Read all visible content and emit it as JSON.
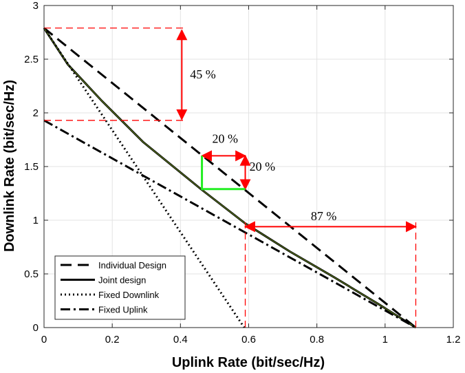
{
  "chart_data": {
    "type": "line",
    "title": "",
    "xlabel": "Uplink Rate (bit/sec/Hz)",
    "ylabel": "Downlink Rate (bit/sec/Hz)",
    "xlim": [
      0,
      1.2
    ],
    "ylim": [
      0,
      3
    ],
    "xticks": [
      0,
      0.2,
      0.4,
      0.6,
      0.8,
      1,
      1.2
    ],
    "xtick_labels": [
      "0",
      "0.2",
      "0.4",
      "0.6",
      "0.8",
      "1",
      "1.2"
    ],
    "yticks": [
      0,
      0.5,
      1,
      1.5,
      2,
      2.5,
      3
    ],
    "ytick_labels": [
      "0",
      "0.5",
      "1",
      "1.5",
      "2",
      "2.5",
      "3"
    ],
    "grid": true,
    "legend_position": "bottom-left",
    "series": [
      {
        "name": "Individual Design",
        "style": "dashed",
        "color": "#000000",
        "x": [
          0,
          1.09
        ],
        "y": [
          2.79,
          0
        ]
      },
      {
        "name": "Joint design",
        "style": "solid",
        "color": "#000000",
        "inner_color": "#6b8e23",
        "x": [
          0,
          0.07,
          0.17,
          0.29,
          0.46,
          0.59,
          0.72,
          0.85,
          0.98,
          1.09
        ],
        "y": [
          2.79,
          2.45,
          2.11,
          1.73,
          1.29,
          0.97,
          0.71,
          0.47,
          0.22,
          0
        ]
      },
      {
        "name": "Fixed Downlink",
        "style": "dotted",
        "color": "#000000",
        "x": [
          0,
          0.587
        ],
        "y": [
          2.79,
          0
        ]
      },
      {
        "name": "Fixed Uplink",
        "style": "dashdot",
        "color": "#000000",
        "x": [
          0,
          1.09
        ],
        "y": [
          1.93,
          0
        ]
      }
    ],
    "annotations": [
      {
        "text": "45 %",
        "x": 0.466,
        "y": 2.32
      },
      {
        "text": "20 %",
        "x": 0.531,
        "y": 1.72
      },
      {
        "text": "20 %",
        "x": 0.64,
        "y": 1.46
      },
      {
        "text": "87 %",
        "x": 0.82,
        "y": 1.0
      }
    ],
    "guides": [
      {
        "kind": "dashed-red",
        "x": [
          0,
          0.41
        ],
        "y": [
          2.79,
          2.79
        ]
      },
      {
        "kind": "dashed-red",
        "x": [
          0,
          0.41
        ],
        "y": [
          1.93,
          1.93
        ]
      },
      {
        "kind": "dashed-red",
        "x": [
          0.59,
          0.59
        ],
        "y": [
          0,
          0.98
        ]
      },
      {
        "kind": "dashed-red",
        "x": [
          1.09,
          1.09
        ],
        "y": [
          0,
          0.98
        ]
      },
      {
        "kind": "arrow-red-double",
        "x": [
          0.404,
          0.404
        ],
        "y": [
          2.77,
          1.94
        ]
      },
      {
        "kind": "arrow-red-double",
        "x": [
          0.463,
          0.59
        ],
        "y": [
          1.6,
          1.6
        ]
      },
      {
        "kind": "arrow-red-double",
        "x": [
          0.59,
          0.59
        ],
        "y": [
          1.6,
          1.29
        ]
      },
      {
        "kind": "arrow-red-double",
        "x": [
          0.59,
          1.09
        ],
        "y": [
          0.94,
          0.94
        ]
      },
      {
        "kind": "green",
        "x": [
          0.463,
          0.463,
          0.59
        ],
        "y": [
          1.6,
          1.29,
          1.29
        ]
      }
    ]
  }
}
